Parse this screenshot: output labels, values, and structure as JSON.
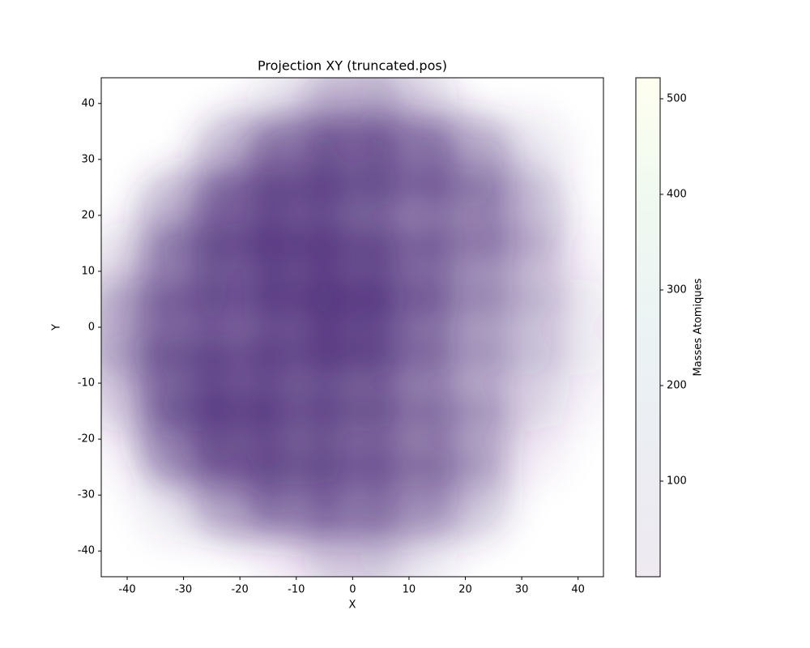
{
  "chart_data": {
    "type": "scatter-density",
    "title": "Projection XY  (truncated.pos)",
    "xlabel": "X",
    "ylabel": "Y",
    "xlim": [
      -44.6,
      44.5
    ],
    "ylim": [
      -44.6,
      44.6
    ],
    "xticks": [
      -40,
      -30,
      -20,
      -10,
      0,
      10,
      20,
      30,
      40
    ],
    "yticks": [
      -40,
      -30,
      -20,
      -10,
      0,
      10,
      20,
      30,
      40
    ],
    "color": "#4b2a78",
    "grid_x": [
      -40,
      -30,
      -20,
      -10,
      0,
      10,
      20,
      30,
      40
    ],
    "grid_y": [
      40,
      30,
      20,
      10,
      0,
      -10,
      -20,
      -30,
      -40
    ],
    "density": [
      [
        0,
        0,
        0,
        0.15,
        0.4,
        0.25,
        0,
        0,
        0
      ],
      [
        0,
        0,
        0.45,
        0.75,
        0.8,
        0.7,
        0.5,
        0.15,
        0
      ],
      [
        0,
        0.45,
        0.8,
        0.85,
        0.7,
        0.5,
        0.55,
        0.35,
        0
      ],
      [
        0.2,
        0.65,
        0.8,
        0.9,
        0.9,
        0.7,
        0.45,
        0.3,
        0.05
      ],
      [
        0.45,
        0.7,
        0.65,
        0.85,
        0.95,
        0.65,
        0.4,
        0.25,
        0.1
      ],
      [
        0.3,
        0.8,
        0.85,
        0.75,
        0.75,
        0.55,
        0.35,
        0.2,
        0.05
      ],
      [
        0.05,
        0.7,
        0.85,
        0.75,
        0.7,
        0.55,
        0.45,
        0.1,
        0
      ],
      [
        0,
        0.15,
        0.55,
        0.7,
        0.65,
        0.55,
        0.35,
        0,
        0
      ],
      [
        0,
        0,
        0,
        0.1,
        0.3,
        0.15,
        0,
        0,
        0
      ]
    ],
    "colorbar": {
      "label": "Masses Atomiques",
      "lim": [
        0,
        522
      ],
      "ticks": [
        100,
        200,
        300,
        400,
        500
      ]
    }
  }
}
